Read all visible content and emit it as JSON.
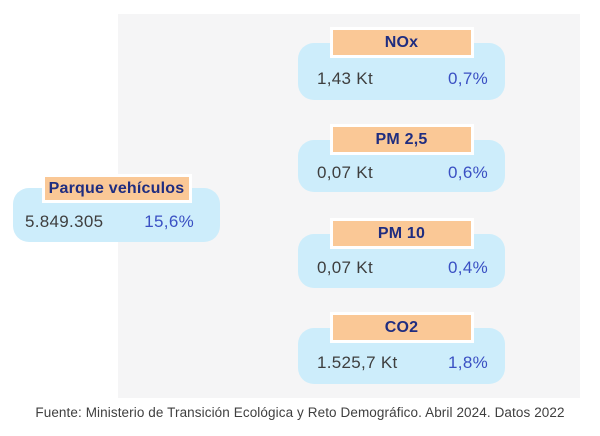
{
  "colors": {
    "panel_bg": "#f5f5f6",
    "card_bg": "#cdedfb",
    "header_bg": "#fac896",
    "header_border": "#ffffff",
    "header_text": "#1f2d80",
    "value_text": "#3e3e3e",
    "percent_text": "#3a50c3"
  },
  "metrics": {
    "parque": {
      "label": "Parque vehículos",
      "value": "5.849.305",
      "percent": "15,6%"
    },
    "nox": {
      "label": "NOx",
      "value": "1,43 Kt",
      "percent": "0,7%"
    },
    "pm25": {
      "label": "PM 2,5",
      "value": "0,07 Kt",
      "percent": "0,6%"
    },
    "pm10": {
      "label": "PM 10",
      "value": "0,07 Kt",
      "percent": "0,4%"
    },
    "co2": {
      "label": "CO2",
      "value": "1.525,7 Kt",
      "percent": "1,8%"
    }
  },
  "footer": {
    "text": "Fuente: Ministerio de Transición Ecológica y Reto Demográfico. Abril 2024. Datos 2022"
  },
  "chart_data": {
    "type": "table",
    "columns": [
      "label",
      "value",
      "percent"
    ],
    "rows": [
      {
        "label": "Parque vehículos",
        "value": "5.849.305",
        "percent": "15,6%"
      },
      {
        "label": "NOx",
        "value": "1,43 Kt",
        "percent": "0,7%"
      },
      {
        "label": "PM 2,5",
        "value": "0,07 Kt",
        "percent": "0,6%"
      },
      {
        "label": "PM 10",
        "value": "0,07 Kt",
        "percent": "0,4%"
      },
      {
        "label": "CO2",
        "value": "1.525,7 Kt",
        "percent": "1,8%"
      }
    ],
    "legend_position": "none",
    "grid": false
  }
}
